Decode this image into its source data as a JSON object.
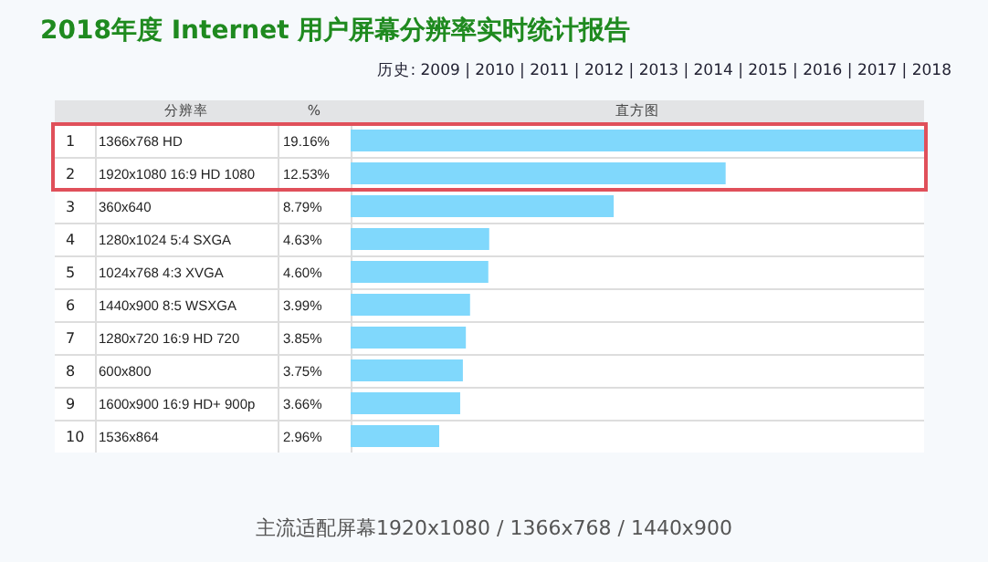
{
  "chart_data": {
    "type": "bar",
    "orientation": "horizontal",
    "title": "2018年度 Internet 用户屏幕分辨率实时统计报告",
    "xlabel": "直方图",
    "ylabel": "分辨率",
    "categories": [
      "1366x768 HD",
      "1920x1080 16:9 HD 1080",
      "360x640",
      "1280x1024 5:4 SXGA",
      "1024x768 4:3 XVGA",
      "1440x900 8:5 WSXGA",
      "1280x720 16:9 HD 720",
      "600x800",
      "1600x900 16:9 HD+ 900p",
      "1536x864"
    ],
    "values": [
      19.16,
      12.53,
      8.79,
      4.63,
      4.6,
      3.99,
      3.85,
      3.75,
      3.66,
      2.96
    ],
    "value_labels": [
      "19.16%",
      "12.53%",
      "8.79%",
      "4.63%",
      "4.60%",
      "3.99%",
      "3.85%",
      "3.75%",
      "3.66%",
      "2.96%"
    ],
    "color": "#80d8fc",
    "xlim": [
      0,
      19.16
    ],
    "tick_labels": "y",
    "grid": false,
    "legend": false,
    "annotations": [
      "历史: 2009 | 2010 | 2011 | 2012 | 2013 | 2014 | 2015 | 2016 | 2017 | 2018",
      "主流适配屏幕1920x1080 / 1366x768 / 1440x900",
      "%",
      "1",
      "2",
      "3",
      "4",
      "5",
      "6",
      "7",
      "8",
      "9",
      "10"
    ]
  }
}
